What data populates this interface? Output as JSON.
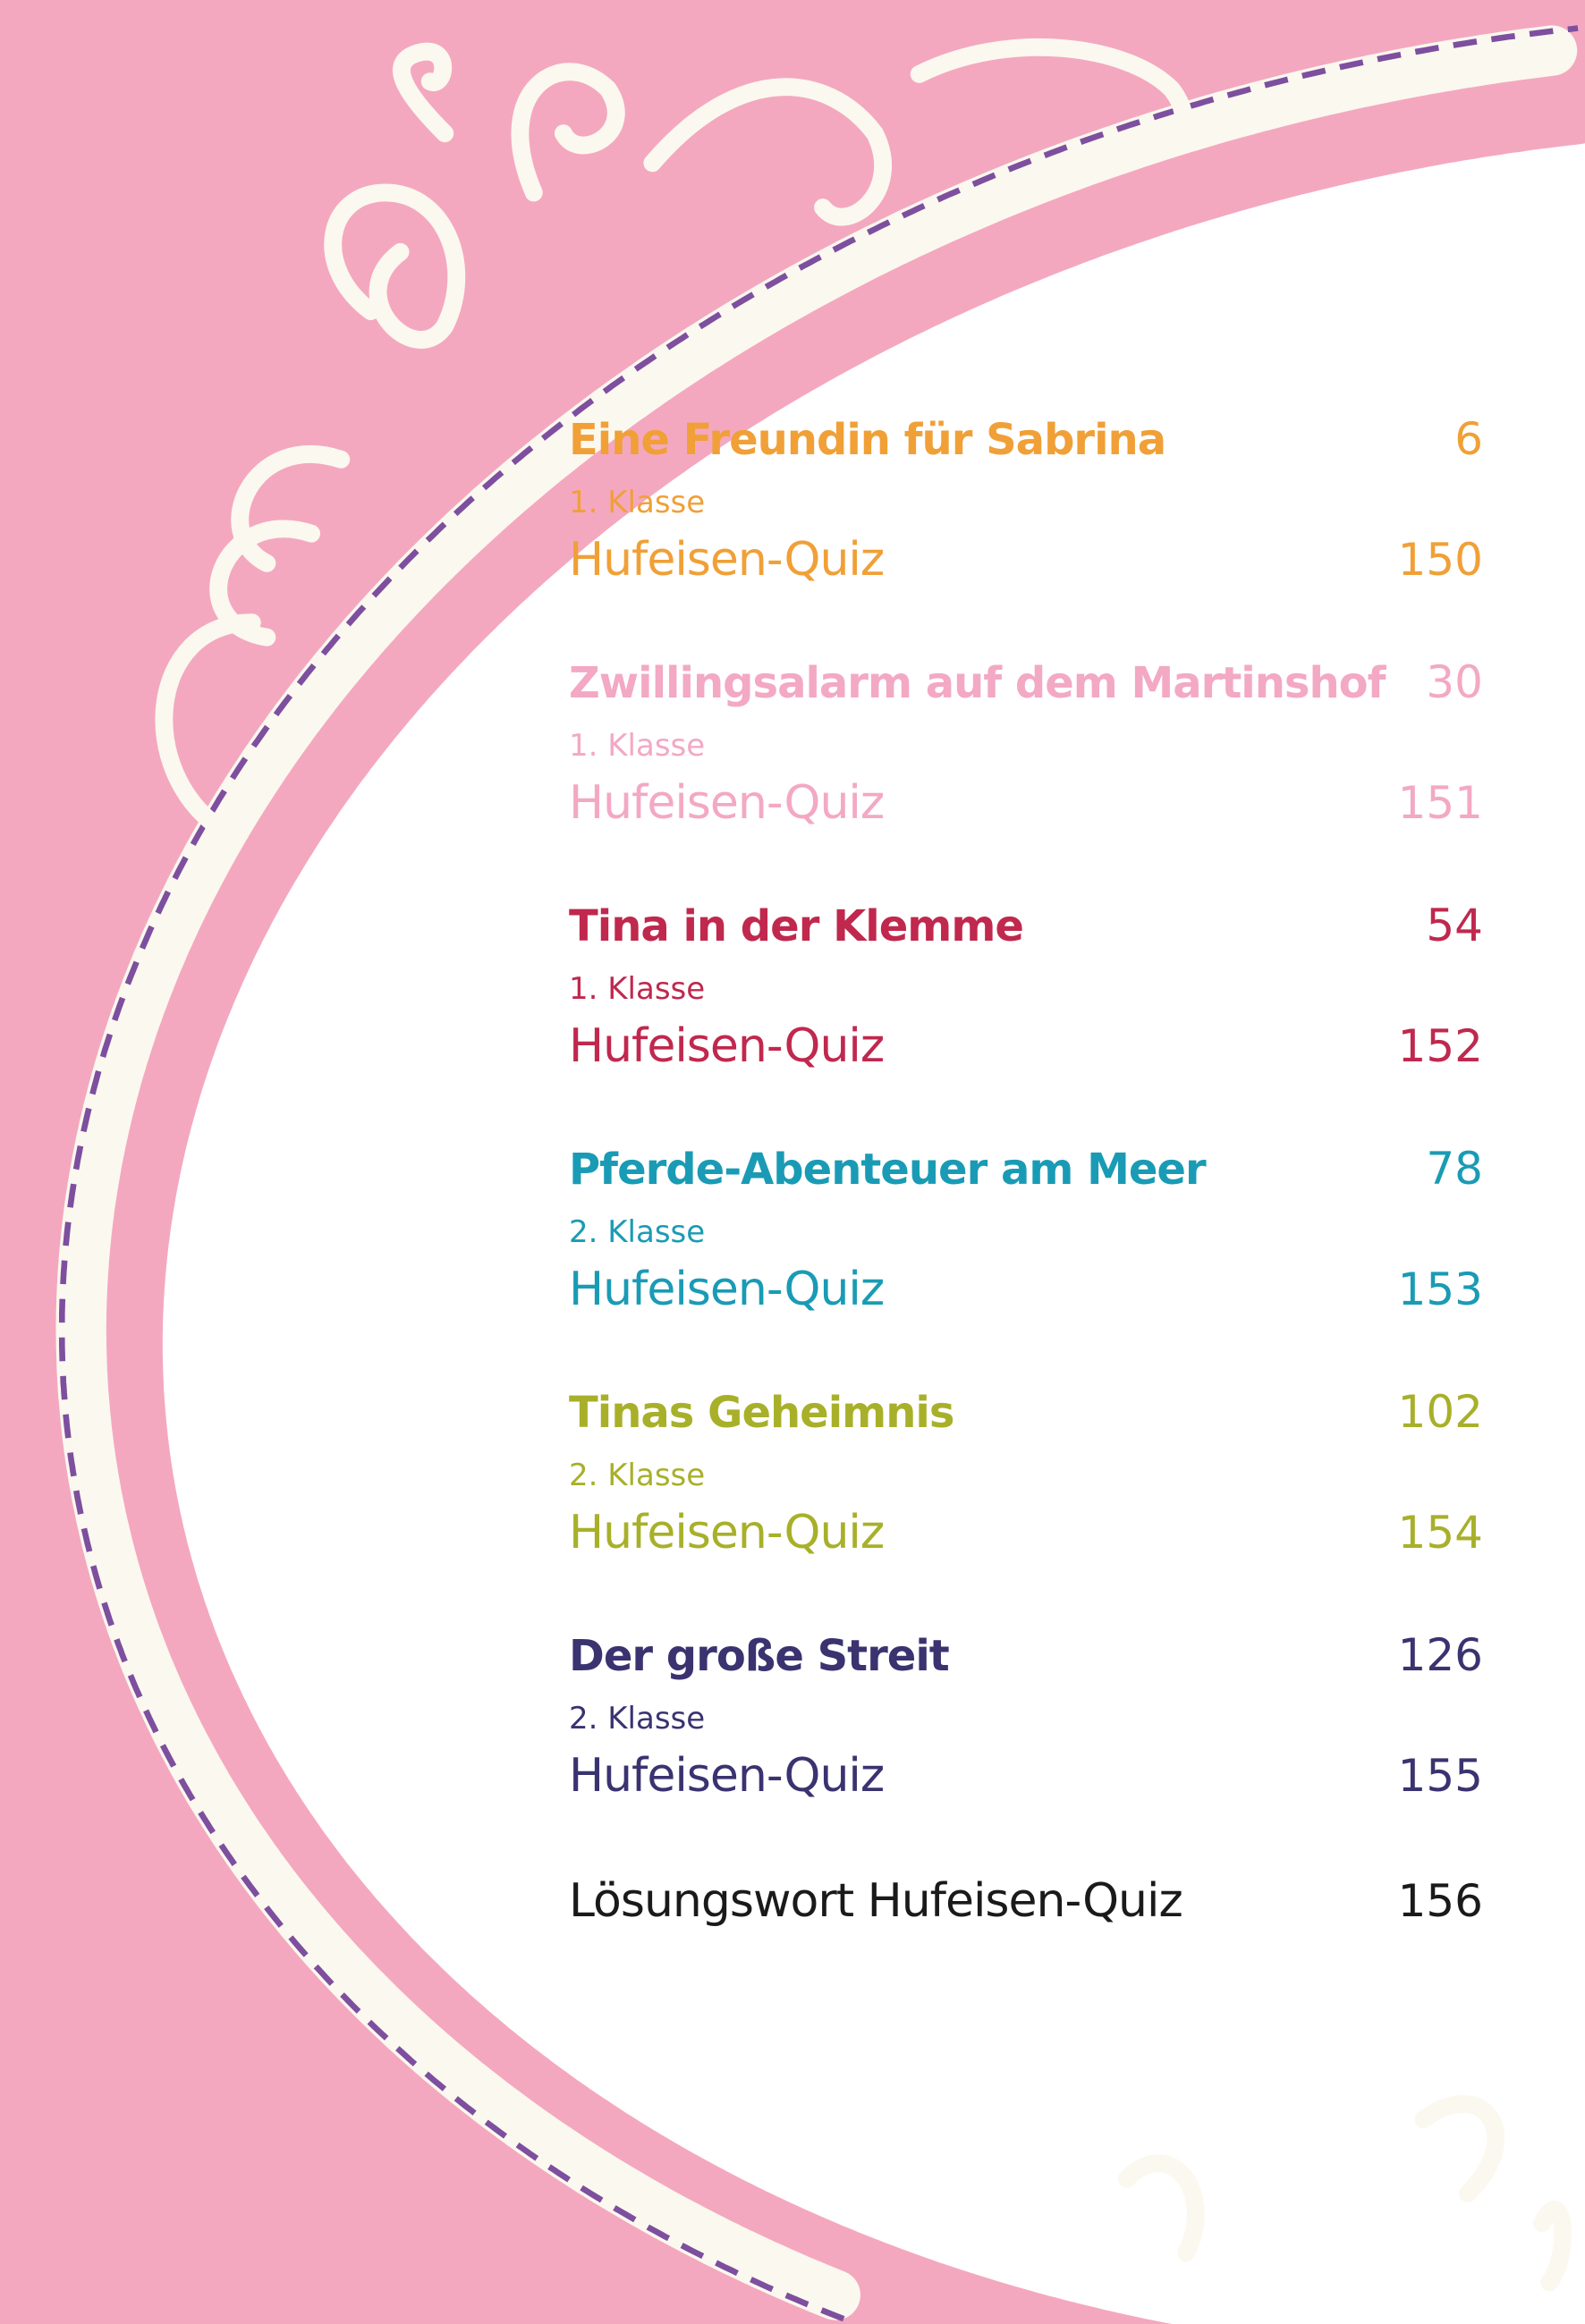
{
  "colors": {
    "background": "#f4a8bf",
    "frame": "#fbf8ef",
    "stitch": "#7d4f9e",
    "page": "#ffffff"
  },
  "entries": [
    {
      "title": "Eine Freundin für Sabrina",
      "page": "6",
      "grade": "1. Klasse",
      "quiz": "Hufeisen-Quiz",
      "quiz_page": "150",
      "color": "#f0a037"
    },
    {
      "title": "Zwillingsalarm auf dem Martinshof",
      "page": "30",
      "grade": "1. Klasse",
      "quiz": "Hufeisen-Quiz",
      "quiz_page": "151",
      "color": "#f3a8c4"
    },
    {
      "title": "Tina in der Klemme",
      "page": "54",
      "grade": "1. Klasse",
      "quiz": "Hufeisen-Quiz",
      "quiz_page": "152",
      "color": "#c0284e"
    },
    {
      "title": "Pferde-Abenteuer am Meer",
      "page": "78",
      "grade": "2. Klasse",
      "quiz": "Hufeisen-Quiz",
      "quiz_page": "153",
      "color": "#1a9bb5"
    },
    {
      "title": "Tinas Geheimnis",
      "page": "102",
      "grade": "2. Klasse",
      "quiz": "Hufeisen-Quiz",
      "quiz_page": "154",
      "color": "#a8b02a"
    },
    {
      "title": "Der große Streit",
      "page": "126",
      "grade": "2. Klasse",
      "quiz": "Hufeisen-Quiz",
      "quiz_page": "155",
      "color": "#3a3370"
    }
  ],
  "final": {
    "title": "Lösungswort Hufeisen-Quiz",
    "page": "156",
    "color": "#1a1a1a"
  }
}
